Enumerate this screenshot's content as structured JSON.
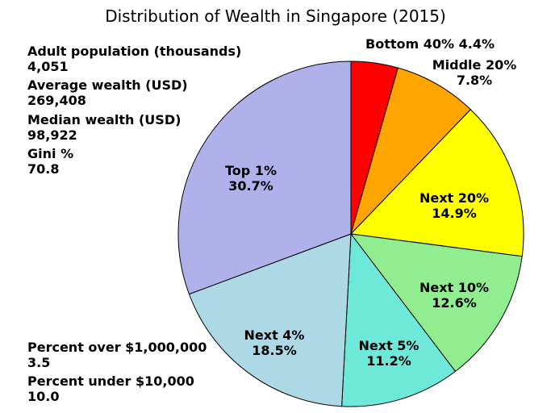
{
  "stats": {
    "adult_population": {
      "label": "Adult population (thousands)",
      "value": "4,051"
    },
    "average_wealth": {
      "label": "Average wealth (USD)",
      "value": "269,408"
    },
    "median_wealth": {
      "label": "Median wealth (USD)",
      "value": "98,922"
    },
    "gini": {
      "label": "Gini %",
      "value": "70.8"
    },
    "percent_over": {
      "label": "Percent over $1,000,000",
      "value": "3.5"
    },
    "percent_under": {
      "label": "Percent under $10,000",
      "value": "10.0"
    }
  },
  "chart_data": {
    "type": "pie",
    "title": "Distribution of Wealth in Singapore (2015)",
    "start": "top",
    "direction": "clockwise",
    "slices": [
      {
        "name": "Bottom 40%",
        "value": 4.4,
        "label": "Bottom 40% 4.4%",
        "color": "#ff0000"
      },
      {
        "name": "Middle 20%",
        "value": 7.8,
        "label_line1": "Middle 20%",
        "label_line2": "7.8%",
        "color": "#ffa500"
      },
      {
        "name": "Next 20%",
        "value": 14.9,
        "label_line1": "Next 20%",
        "label_line2": "14.9%",
        "color": "#ffff00"
      },
      {
        "name": "Next 10%",
        "value": 12.6,
        "label_line1": "Next 10%",
        "label_line2": "12.6%",
        "color": "#90ee90"
      },
      {
        "name": "Next 5%",
        "value": 11.2,
        "label_line1": "Next 5%",
        "label_line2": "11.2%",
        "color": "#6ee8d8"
      },
      {
        "name": "Next 4%",
        "value": 18.5,
        "label_line1": "Next 4%",
        "label_line2": "18.5%",
        "color": "#add8e6"
      },
      {
        "name": "Top 1%",
        "value": 30.7,
        "label_line1": "Top 1%",
        "label_line2": "30.7%",
        "color": "#b0b0ea"
      }
    ]
  }
}
